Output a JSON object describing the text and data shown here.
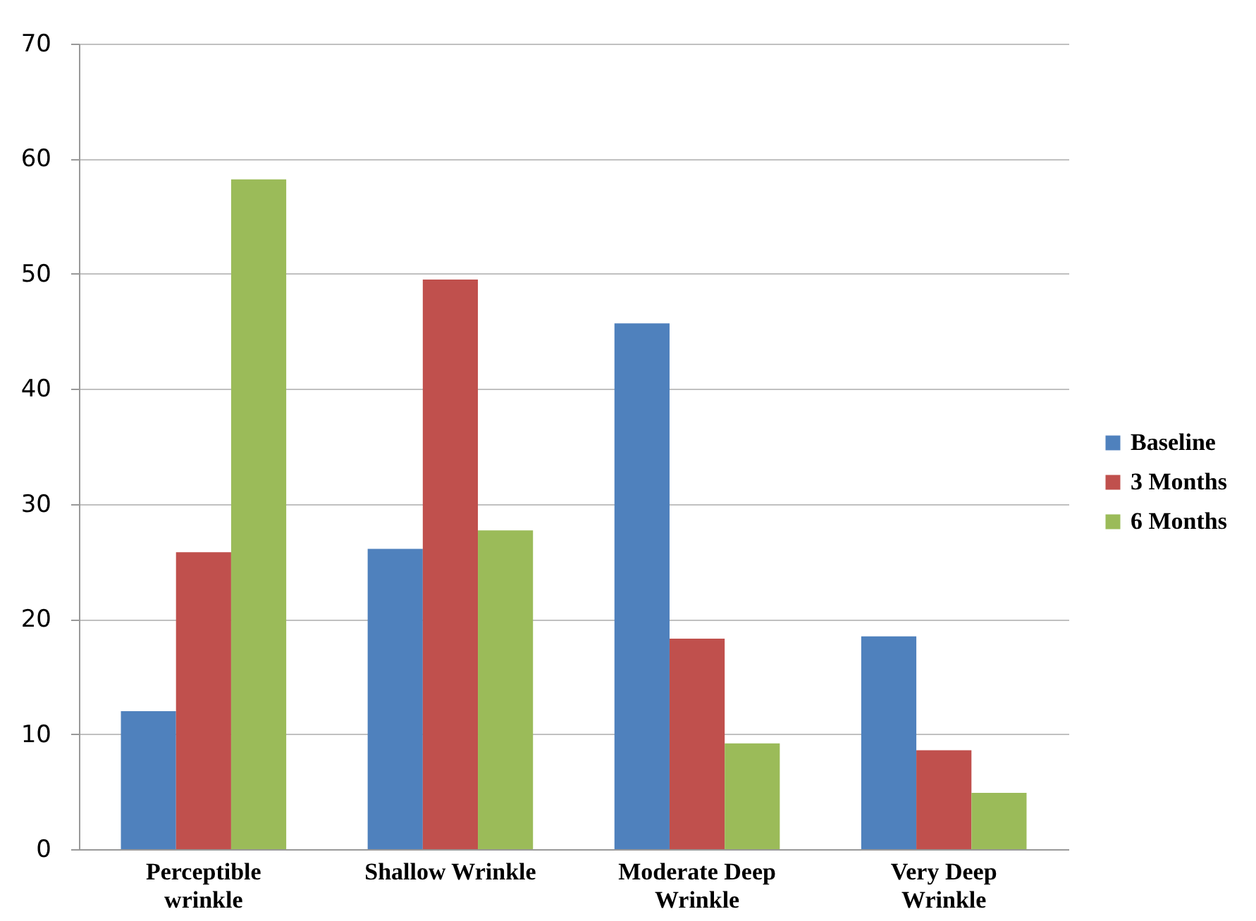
{
  "chart_data": {
    "type": "bar",
    "categories": [
      "Perceptible wrinkle",
      "Shallow Wrinkle",
      "Moderate Deep Wrinkle",
      "Very Deep Wrinkle"
    ],
    "series": [
      {
        "name": "Baseline",
        "color": "#4f81bd",
        "values": [
          12.0,
          26.1,
          45.7,
          18.5
        ]
      },
      {
        "name": "3 Months",
        "color": "#c0504d",
        "values": [
          25.8,
          49.5,
          18.3,
          8.6
        ]
      },
      {
        "name": "6 Months",
        "color": "#9bbb59",
        "values": [
          58.2,
          27.7,
          9.2,
          4.9
        ]
      }
    ],
    "ylim": [
      0,
      70
    ],
    "yticks": [
      0,
      10,
      20,
      30,
      40,
      50,
      60,
      70
    ],
    "grid": "y",
    "legend": "right"
  }
}
